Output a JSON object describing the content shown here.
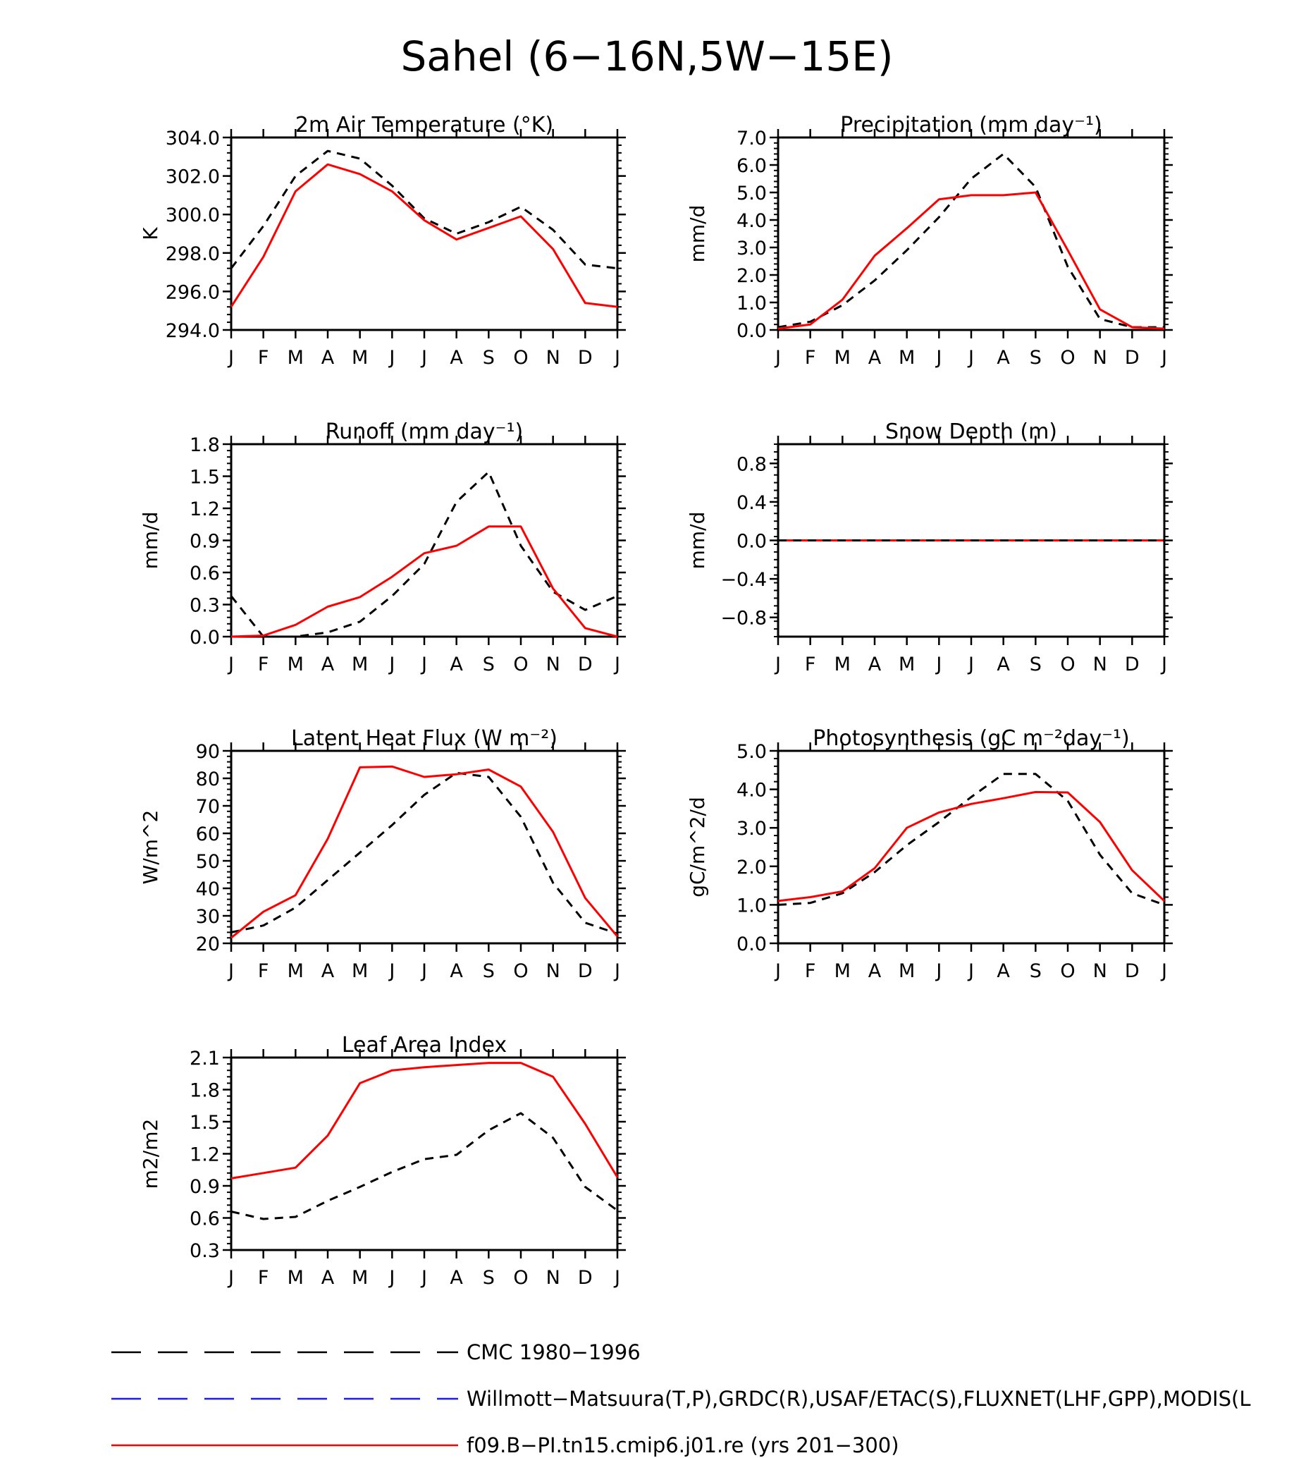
{
  "figure_title": "Sahel (6−16N,5W−15E)",
  "months": [
    "J",
    "F",
    "M",
    "A",
    "M",
    "J",
    "J",
    "A",
    "S",
    "O",
    "N",
    "D",
    "J"
  ],
  "colors": {
    "cmc": "#000000",
    "obs": "#1a1aff",
    "model": "#ff0000"
  },
  "legend": [
    {
      "id": "cmc",
      "label": "CMC 1980−1996",
      "color": "#000000",
      "style": "dashed"
    },
    {
      "id": "obs",
      "label": "Willmott−Matsuura(T,P),GRDC(R),USAF/ETAC(S),FLUXNET(LHF,GPP),MODIS(L",
      "color": "#1a1aff",
      "style": "dashed"
    },
    {
      "id": "model",
      "label": "f09.B−PI.tn15.cmip6.j01.re (yrs 201−300)",
      "color": "#ff0000",
      "style": "solid"
    }
  ],
  "chart_data": [
    {
      "type": "line",
      "title": "2m Air Temperature (°K)",
      "ylabel": "K",
      "ylim": [
        294,
        304
      ],
      "yticks": [
        294.0,
        296.0,
        298.0,
        300.0,
        302.0,
        304.0
      ],
      "ytick_labels": [
        "294.0",
        "296.0",
        "298.0",
        "300.0",
        "302.0",
        "304.0"
      ],
      "x": [
        "J",
        "F",
        "M",
        "A",
        "M",
        "J",
        "J",
        "A",
        "S",
        "O",
        "N",
        "D",
        "J"
      ],
      "series": [
        {
          "id": "cmc",
          "values": [
            297.2,
            299.4,
            302.0,
            303.3,
            302.9,
            301.5,
            299.8,
            299.0,
            299.6,
            300.4,
            299.2,
            297.4,
            297.2
          ]
        },
        {
          "id": "model",
          "values": [
            295.2,
            297.8,
            301.2,
            302.6,
            302.1,
            301.2,
            299.7,
            298.7,
            299.3,
            299.9,
            298.2,
            295.4,
            295.2
          ]
        }
      ]
    },
    {
      "type": "line",
      "title": "Precipitation (mm day⁻¹)",
      "ylabel": "mm/d",
      "ylim": [
        0,
        7
      ],
      "yticks": [
        0,
        1,
        2,
        3,
        4,
        5,
        6,
        7
      ],
      "ytick_labels": [
        "0.0",
        "1.0",
        "2.0",
        "3.0",
        "4.0",
        "5.0",
        "6.0",
        "7.0"
      ],
      "x": [
        "J",
        "F",
        "M",
        "A",
        "M",
        "J",
        "J",
        "A",
        "S",
        "O",
        "N",
        "D",
        "J"
      ],
      "series": [
        {
          "id": "cmc",
          "values": [
            0.1,
            0.3,
            0.9,
            1.8,
            2.9,
            4.1,
            5.5,
            6.4,
            5.2,
            2.3,
            0.4,
            0.1,
            0.1
          ]
        },
        {
          "id": "model",
          "values": [
            0.05,
            0.2,
            1.1,
            2.7,
            3.7,
            4.75,
            4.9,
            4.9,
            5.0,
            2.9,
            0.75,
            0.1,
            0.05
          ]
        }
      ]
    },
    {
      "type": "line",
      "title": "Runoff (mm day⁻¹)",
      "ylabel": "mm/d",
      "ylim": [
        0,
        1.8
      ],
      "yticks": [
        0,
        0.3,
        0.6,
        0.9,
        1.2,
        1.5,
        1.8
      ],
      "ytick_labels": [
        "0.0",
        "0.3",
        "0.6",
        "0.9",
        "1.2",
        "1.5",
        "1.8"
      ],
      "x": [
        "J",
        "F",
        "M",
        "A",
        "M",
        "J",
        "J",
        "A",
        "S",
        "O",
        "N",
        "D",
        "J"
      ],
      "series": [
        {
          "id": "cmc",
          "values": [
            0.38,
            0.0,
            0.0,
            0.04,
            0.14,
            0.38,
            0.68,
            1.26,
            1.54,
            0.85,
            0.42,
            0.25,
            0.38
          ]
        },
        {
          "id": "model",
          "values": [
            0.0,
            0.01,
            0.11,
            0.28,
            0.37,
            0.56,
            0.78,
            0.85,
            1.03,
            1.03,
            0.45,
            0.08,
            0.0
          ]
        }
      ]
    },
    {
      "type": "line",
      "title": "Snow Depth (m)",
      "ylabel": "mm/d",
      "ylim": [
        -1.0,
        1.0
      ],
      "yticks": [
        -0.8,
        -0.4,
        0.0,
        0.4,
        0.8
      ],
      "ytick_labels": [
        "−0.8",
        "−0.4",
        "0.0",
        "0.4",
        "0.8"
      ],
      "x": [
        "J",
        "F",
        "M",
        "A",
        "M",
        "J",
        "J",
        "A",
        "S",
        "O",
        "N",
        "D",
        "J"
      ],
      "series": [
        {
          "id": "model",
          "values": [
            0,
            0,
            0,
            0,
            0,
            0,
            0,
            0,
            0,
            0,
            0,
            0,
            0
          ]
        },
        {
          "id": "cmc",
          "values": [
            0,
            0,
            0,
            0,
            0,
            0,
            0,
            0,
            0,
            0,
            0,
            0,
            0
          ]
        }
      ]
    },
    {
      "type": "line",
      "title": "Latent Heat Flux (W m⁻²)",
      "ylabel": "W/m^2",
      "ylim": [
        20,
        90
      ],
      "yticks": [
        20,
        30,
        40,
        50,
        60,
        70,
        80,
        90
      ],
      "ytick_labels": [
        "20",
        "30",
        "40",
        "50",
        "60",
        "70",
        "80",
        "90"
      ],
      "x": [
        "J",
        "F",
        "M",
        "A",
        "M",
        "J",
        "J",
        "A",
        "S",
        "O",
        "N",
        "D",
        "J"
      ],
      "series": [
        {
          "id": "cmc",
          "values": [
            24,
            26.5,
            33,
            43,
            53,
            63,
            74,
            82,
            80.5,
            66,
            42,
            27.5,
            23.5
          ]
        },
        {
          "id": "model",
          "values": [
            22,
            31.5,
            37.5,
            58,
            84,
            84.3,
            80.5,
            81.5,
            83.2,
            77,
            60.5,
            36.5,
            22.5
          ]
        }
      ]
    },
    {
      "type": "line",
      "title": "Photosynthesis (gC m⁻²day⁻¹)",
      "ylabel": "gC/m^2/d",
      "ylim": [
        0,
        5
      ],
      "yticks": [
        0,
        1,
        2,
        3,
        4,
        5
      ],
      "ytick_labels": [
        "0.0",
        "1.0",
        "2.0",
        "3.0",
        "4.0",
        "5.0"
      ],
      "x": [
        "J",
        "F",
        "M",
        "A",
        "M",
        "J",
        "J",
        "A",
        "S",
        "O",
        "N",
        "D",
        "J"
      ],
      "series": [
        {
          "id": "cmc",
          "values": [
            1.0,
            1.05,
            1.3,
            1.85,
            2.55,
            3.15,
            3.8,
            4.4,
            4.4,
            3.7,
            2.3,
            1.3,
            1.0
          ]
        },
        {
          "id": "model",
          "values": [
            1.1,
            1.2,
            1.35,
            1.95,
            3.0,
            3.4,
            3.62,
            3.77,
            3.93,
            3.92,
            3.15,
            1.9,
            1.1
          ]
        }
      ]
    },
    {
      "type": "line",
      "title": "Leaf Area Index",
      "ylabel": "m2/m2",
      "ylim": [
        0.3,
        2.1
      ],
      "yticks": [
        0.3,
        0.6,
        0.9,
        1.2,
        1.5,
        1.8,
        2.1
      ],
      "ytick_labels": [
        "0.3",
        "0.6",
        "0.9",
        "1.2",
        "1.5",
        "1.8",
        "2.1"
      ],
      "x": [
        "J",
        "F",
        "M",
        "A",
        "M",
        "J",
        "J",
        "A",
        "S",
        "O",
        "N",
        "D",
        "J"
      ],
      "series": [
        {
          "id": "cmc",
          "values": [
            0.66,
            0.59,
            0.61,
            0.76,
            0.89,
            1.03,
            1.15,
            1.19,
            1.42,
            1.58,
            1.35,
            0.89,
            0.67
          ]
        },
        {
          "id": "model",
          "values": [
            0.97,
            1.02,
            1.07,
            1.37,
            1.86,
            1.98,
            2.01,
            2.03,
            2.05,
            2.05,
            1.92,
            1.48,
            0.98
          ]
        }
      ]
    }
  ]
}
